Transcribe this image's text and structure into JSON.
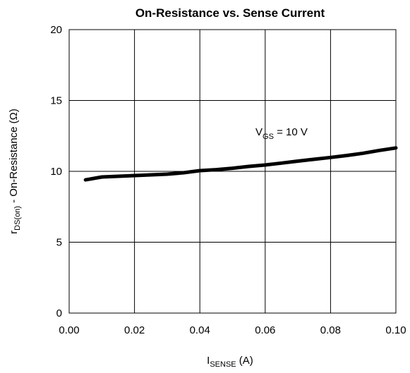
{
  "chart_data": {
    "type": "line",
    "title": "On-Resistance vs. Sense Current",
    "xlabel": {
      "main": "I",
      "sub": "SENSE",
      "tail": " (A)"
    },
    "ylabel": {
      "main": "r",
      "sub": "DS(on)",
      "tail": "   -  On-Resistance (Ω)"
    },
    "xlim": [
      0.0,
      0.1
    ],
    "ylim": [
      0,
      20
    ],
    "x_ticks": [
      "0.00",
      "0.02",
      "0.04",
      "0.06",
      "0.08",
      "0.10"
    ],
    "y_ticks": [
      "0",
      "5",
      "10",
      "15",
      "20"
    ],
    "grid": true,
    "annotation": {
      "main": "V",
      "sub": "GS",
      "tail": " = 10 V"
    },
    "series": [
      {
        "x": [
          0.005,
          0.01,
          0.015,
          0.02,
          0.025,
          0.03,
          0.035,
          0.04,
          0.045,
          0.05,
          0.055,
          0.06,
          0.065,
          0.07,
          0.075,
          0.08,
          0.085,
          0.09,
          0.095,
          0.1
        ],
        "y": [
          9.4,
          9.6,
          9.65,
          9.7,
          9.75,
          9.8,
          9.9,
          10.05,
          10.12,
          10.22,
          10.35,
          10.45,
          10.58,
          10.72,
          10.85,
          10.98,
          11.12,
          11.28,
          11.48,
          11.65
        ]
      }
    ]
  }
}
